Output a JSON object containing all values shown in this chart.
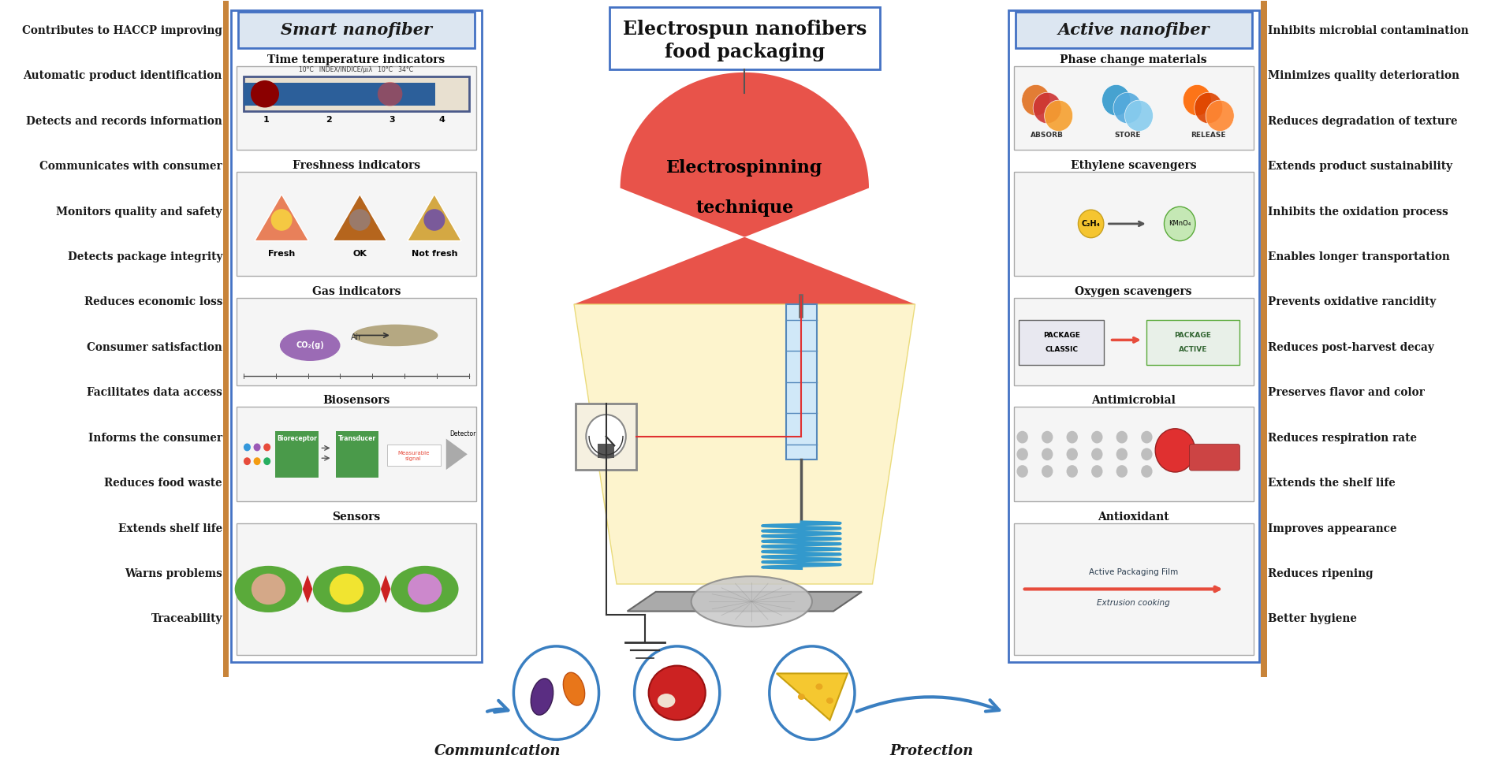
{
  "left_labels": [
    "Contributes to HACCP improving",
    "Automatic product identification",
    "Detects and records information",
    "Communicates with consumer",
    "Monitors quality and safety",
    "Detects package integrity",
    "Reduces economic loss",
    "Consumer satisfaction",
    "Facilitates data access",
    "Informs the consumer",
    "Reduces food waste",
    "Extends shelf life",
    "Warns problems",
    "Traceability"
  ],
  "right_labels": [
    "Inhibits microbial contamination",
    "Minimizes quality deterioration",
    "Reduces degradation of texture",
    "Extends product sustainability",
    "Inhibits the oxidation process",
    "Enables longer transportation",
    "Prevents oxidative rancidity",
    "Reduces post-harvest decay",
    "Preserves flavor and color",
    "Reduces respiration rate",
    "Extends the shelf life",
    "Improves appearance",
    "Reduces ripening",
    "Better hygiene"
  ],
  "smart_panels": [
    "Time temperature indicators",
    "Freshness indicators",
    "Gas indicators",
    "Biosensors",
    "Sensors"
  ],
  "active_panels": [
    "Phase change materials",
    "Ethylene scavengers",
    "Oxygen scavengers",
    "Antimicrobial",
    "Antioxidant"
  ],
  "center_title_line1": "Electrospun nanofibers",
  "center_title_line2": "food packaging",
  "cone_label_line1": "Electrospinning",
  "cone_label_line2": "technique",
  "smart_title": "Smart nanofiber",
  "active_title": "Active nanofiber",
  "bottom_left_label": "Communication",
  "bottom_right_label": "Protection",
  "bg_color": "#ffffff",
  "panel_border": "#4472C4",
  "title_bg": "#dce6f1",
  "cone_red": "#e8534a",
  "cone_yellow": "#fdf3c8",
  "arrow_color": "#3a7fc1",
  "text_color": "#1a1a1a",
  "left_bar_color": "#c0392b",
  "left_separator_color": "#c8843a"
}
